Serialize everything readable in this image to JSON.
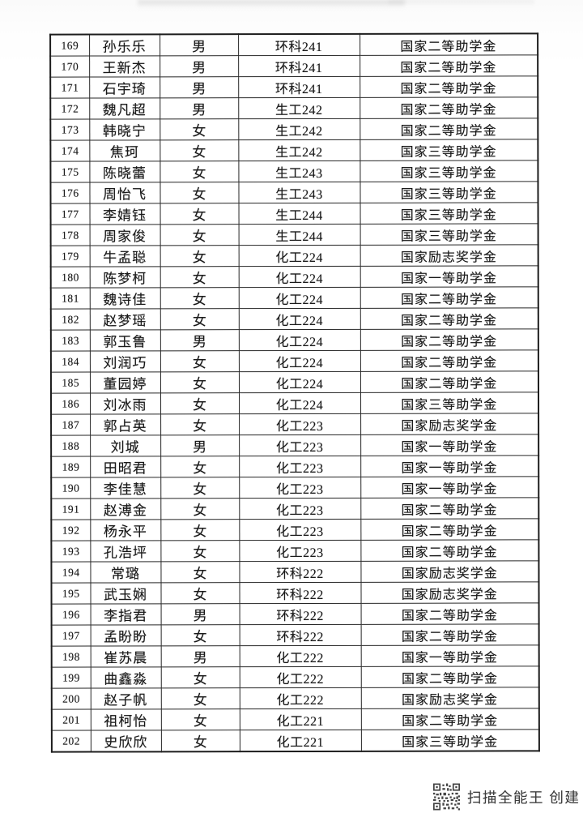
{
  "table": {
    "rows": [
      {
        "no": "169",
        "name": "孙乐乐",
        "gender": "男",
        "class": "环科241",
        "award": "国家二等助学金"
      },
      {
        "no": "170",
        "name": "王新杰",
        "gender": "男",
        "class": "环科241",
        "award": "国家二等助学金"
      },
      {
        "no": "171",
        "name": "石宇琦",
        "gender": "男",
        "class": "环科241",
        "award": "国家二等助学金"
      },
      {
        "no": "172",
        "name": "魏凡超",
        "gender": "男",
        "class": "生工242",
        "award": "国家二等助学金"
      },
      {
        "no": "173",
        "name": "韩晓宁",
        "gender": "女",
        "class": "生工242",
        "award": "国家二等助学金"
      },
      {
        "no": "174",
        "name": "焦珂",
        "gender": "女",
        "class": "生工242",
        "award": "国家三等助学金"
      },
      {
        "no": "175",
        "name": "陈晓蕾",
        "gender": "女",
        "class": "生工243",
        "award": "国家三等助学金"
      },
      {
        "no": "176",
        "name": "周怡飞",
        "gender": "女",
        "class": "生工243",
        "award": "国家三等助学金"
      },
      {
        "no": "177",
        "name": "李婧钰",
        "gender": "女",
        "class": "生工244",
        "award": "国家三等助学金"
      },
      {
        "no": "178",
        "name": "周家俊",
        "gender": "女",
        "class": "生工244",
        "award": "国家三等助学金"
      },
      {
        "no": "179",
        "name": "牛孟聪",
        "gender": "女",
        "class": "化工224",
        "award": "国家励志奖学金"
      },
      {
        "no": "180",
        "name": "陈梦柯",
        "gender": "女",
        "class": "化工224",
        "award": "国家一等助学金"
      },
      {
        "no": "181",
        "name": "魏诗佳",
        "gender": "女",
        "class": "化工224",
        "award": "国家二等助学金"
      },
      {
        "no": "182",
        "name": "赵梦瑶",
        "gender": "女",
        "class": "化工224",
        "award": "国家二等助学金"
      },
      {
        "no": "183",
        "name": "郭玉鲁",
        "gender": "男",
        "class": "化工224",
        "award": "国家二等助学金"
      },
      {
        "no": "184",
        "name": "刘润巧",
        "gender": "女",
        "class": "化工224",
        "award": "国家二等助学金"
      },
      {
        "no": "185",
        "name": "董园婷",
        "gender": "女",
        "class": "化工224",
        "award": "国家二等助学金"
      },
      {
        "no": "186",
        "name": "刘冰雨",
        "gender": "女",
        "class": "化工224",
        "award": "国家三等助学金"
      },
      {
        "no": "187",
        "name": "郭占英",
        "gender": "女",
        "class": "化工223",
        "award": "国家励志奖学金"
      },
      {
        "no": "188",
        "name": "刘城",
        "gender": "男",
        "class": "化工223",
        "award": "国家一等助学金"
      },
      {
        "no": "189",
        "name": "田昭君",
        "gender": "女",
        "class": "化工223",
        "award": "国家一等助学金"
      },
      {
        "no": "190",
        "name": "李佳慧",
        "gender": "女",
        "class": "化工223",
        "award": "国家一等助学金"
      },
      {
        "no": "191",
        "name": "赵溥金",
        "gender": "女",
        "class": "化工223",
        "award": "国家二等助学金"
      },
      {
        "no": "192",
        "name": "杨永平",
        "gender": "女",
        "class": "化工223",
        "award": "国家二等助学金"
      },
      {
        "no": "193",
        "name": "孔浩坪",
        "gender": "女",
        "class": "化工223",
        "award": "国家二等助学金"
      },
      {
        "no": "194",
        "name": "常璐",
        "gender": "女",
        "class": "环科222",
        "award": "国家励志奖学金"
      },
      {
        "no": "195",
        "name": "武玉娴",
        "gender": "女",
        "class": "环科222",
        "award": "国家励志奖学金"
      },
      {
        "no": "196",
        "name": "李指君",
        "gender": "男",
        "class": "环科222",
        "award": "国家二等助学金"
      },
      {
        "no": "197",
        "name": "孟盼盼",
        "gender": "女",
        "class": "环科222",
        "award": "国家二等助学金"
      },
      {
        "no": "198",
        "name": "崔苏晨",
        "gender": "男",
        "class": "化工222",
        "award": "国家一等助学金"
      },
      {
        "no": "199",
        "name": "曲鑫淼",
        "gender": "女",
        "class": "化工222",
        "award": "国家二等助学金"
      },
      {
        "no": "200",
        "name": "赵子帆",
        "gender": "女",
        "class": "化工222",
        "award": "国家励志奖学金"
      },
      {
        "no": "201",
        "name": "祖柯怡",
        "gender": "女",
        "class": "化工221",
        "award": "国家二等助学金"
      },
      {
        "no": "202",
        "name": "史欣欣",
        "gender": "女",
        "class": "化工221",
        "award": "国家三等助学金"
      }
    ]
  },
  "watermark": {
    "text": "扫描全能王 创建",
    "icon": "qr-code-icon"
  },
  "colors": {
    "table_border": "#262626",
    "text": "#191919",
    "watermark_text": "#3d3d3d",
    "page_bg": "#ffffff"
  }
}
